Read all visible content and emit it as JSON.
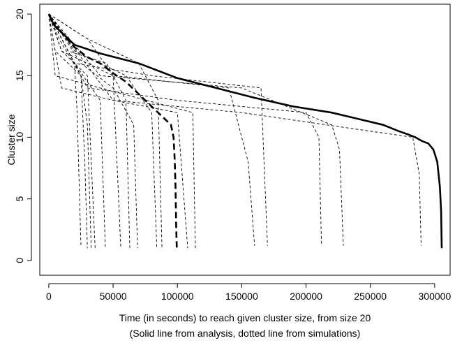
{
  "chart_data": {
    "type": "line",
    "xlabel": "Time (in seconds) to reach given cluster size, from size 20",
    "caption": "(Solid line from analysis, dotted line from simulations)",
    "ylabel": "Cluster size",
    "xlim": [
      -7000,
      312000
    ],
    "ylim": [
      -1.2,
      20.8
    ],
    "x_ticks": [
      0,
      50000,
      100000,
      150000,
      200000,
      250000,
      300000
    ],
    "x_tick_labels": [
      "0",
      "50000",
      "100000",
      "150000",
      "200000",
      "250000",
      "300000"
    ],
    "y_ticks": [
      0,
      5,
      10,
      15,
      20
    ],
    "y_tick_labels": [
      "0",
      "5",
      "10",
      "15",
      "20"
    ],
    "grid": false,
    "legend": "none",
    "line_color": "#000000",
    "series": [
      {
        "style": "solid-thick",
        "x": [
          0,
          2000,
          5000,
          10000,
          20000,
          40000,
          70000,
          100000,
          130000,
          160000,
          190000,
          220000,
          240000,
          260000,
          272000,
          280000,
          285000,
          290000,
          295000,
          299000,
          302000,
          304000,
          305000,
          305500
        ],
        "y": [
          20,
          19.5,
          19,
          18.5,
          17.5,
          16.8,
          16,
          14.8,
          14,
          13.2,
          12.5,
          12,
          11.5,
          11,
          10.5,
          10.2,
          10,
          9.7,
          9.5,
          9,
          8,
          6,
          4,
          1
        ]
      },
      {
        "style": "dashed-thick",
        "x": [
          0,
          5000,
          10000,
          20000,
          30000,
          40000,
          50000,
          60000,
          70000,
          80000,
          90000,
          95000,
          97000,
          98000,
          98500,
          99000,
          99500
        ],
        "y": [
          20,
          19,
          18.5,
          17.3,
          16.5,
          16,
          15.2,
          14.5,
          13.5,
          12.5,
          11.5,
          11,
          10,
          8,
          6,
          3,
          1
        ]
      },
      {
        "style": "dashed",
        "x": [
          0,
          10000,
          20000,
          22000,
          25000
        ],
        "y": [
          20,
          18,
          16,
          12,
          1.2
        ]
      },
      {
        "style": "dashed",
        "x": [
          0,
          5000,
          15000,
          25000,
          28000,
          30000
        ],
        "y": [
          20,
          17,
          16,
          15,
          8,
          1
        ]
      },
      {
        "style": "dashed",
        "x": [
          0,
          8000,
          25000,
          30000,
          33000
        ],
        "y": [
          20,
          18,
          15,
          11,
          1
        ]
      },
      {
        "style": "dashed",
        "x": [
          0,
          10000,
          30000,
          36000
        ],
        "y": [
          20,
          17,
          15,
          1
        ]
      },
      {
        "style": "dashed",
        "x": [
          0,
          20000,
          40000,
          44000
        ],
        "y": [
          20,
          16,
          13,
          1
        ]
      },
      {
        "style": "dashed",
        "x": [
          0,
          30000,
          50000,
          56000
        ],
        "y": [
          20,
          18,
          15,
          1
        ]
      },
      {
        "style": "dashed",
        "x": [
          0,
          15000,
          45000,
          60000,
          63000
        ],
        "y": [
          20,
          17,
          16,
          13,
          1
        ]
      },
      {
        "style": "dashed",
        "x": [
          0,
          25000,
          50000,
          66000,
          69000
        ],
        "y": [
          20,
          16,
          14,
          11,
          1
        ]
      },
      {
        "style": "dashed",
        "x": [
          0,
          20000,
          60000,
          80000,
          84000
        ],
        "y": [
          20,
          17,
          15,
          12,
          1
        ]
      },
      {
        "style": "dashed",
        "x": [
          0,
          30000,
          70000,
          85000,
          88000
        ],
        "y": [
          20,
          18,
          16,
          13,
          1
        ]
      },
      {
        "style": "dashed",
        "x": [
          0,
          10000,
          50000,
          100000,
          108000
        ],
        "y": [
          20,
          14,
          13,
          12,
          1
        ]
      },
      {
        "style": "dashed",
        "x": [
          0,
          5000,
          40000,
          112000,
          114000
        ],
        "y": [
          20,
          15,
          14,
          12,
          1
        ]
      },
      {
        "style": "dashed",
        "x": [
          0,
          10000,
          50000,
          140000,
          155000,
          160000
        ],
        "y": [
          20,
          17,
          15,
          14,
          8,
          1.2
        ]
      },
      {
        "style": "dashed",
        "x": [
          0,
          20000,
          80000,
          165000,
          170000
        ],
        "y": [
          20,
          16,
          15,
          14,
          1.2
        ]
      },
      {
        "style": "dashed",
        "x": [
          0,
          30000,
          100000,
          200000,
          210000,
          212000
        ],
        "y": [
          20,
          14,
          13,
          12,
          10,
          1.2
        ]
      },
      {
        "style": "dashed",
        "x": [
          0,
          40000,
          150000,
          220000,
          226000,
          229000
        ],
        "y": [
          20,
          15,
          14,
          11,
          9,
          1.2
        ]
      },
      {
        "style": "dashed",
        "x": [
          0,
          50000,
          150000,
          283000,
          288000,
          289500
        ],
        "y": [
          20,
          13,
          12,
          10,
          7,
          1.2
        ]
      }
    ]
  }
}
